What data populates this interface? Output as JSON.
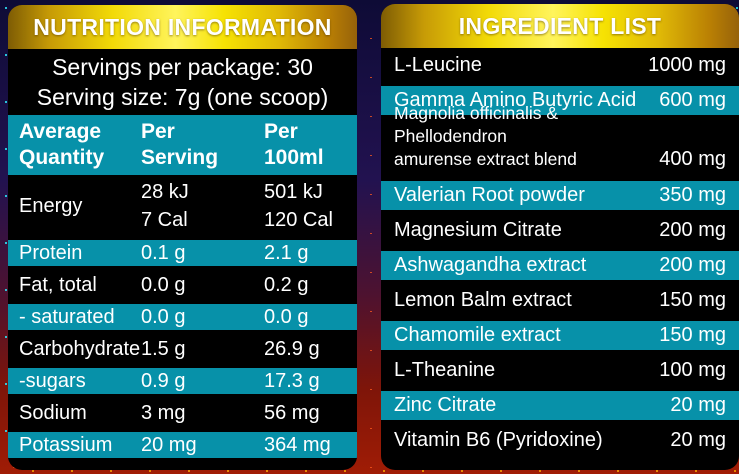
{
  "colors": {
    "accent_teal": "#0791a9",
    "gold_bright": "#fff200",
    "gold_dark": "#8a6203",
    "row_black": "#000000",
    "text_white": "#ffffff"
  },
  "nutrition": {
    "title": "NUTRITION INFORMATION",
    "servings_per_package": "Servings per package: 30",
    "serving_size": "Serving size: 7g (one scoop)",
    "columns": [
      "Average\nQuantity",
      "Per\nServing",
      "Per\n100ml"
    ],
    "rows": [
      {
        "label": "Energy",
        "per_serving": "28 kJ\n7 Cal",
        "per_100ml": "501 kJ\n120 Cal"
      },
      {
        "label": "Protein",
        "per_serving": "0.1 g",
        "per_100ml": "2.1 g"
      },
      {
        "label": "Fat, total",
        "per_serving": "0.0 g",
        "per_100ml": "0.2 g"
      },
      {
        "label": "- saturated",
        "per_serving": "0.0 g",
        "per_100ml": "0.0 g"
      },
      {
        "label": "Carbohydrate",
        "per_serving": "1.5 g",
        "per_100ml": "26.9 g"
      },
      {
        "label": "-sugars",
        "per_serving": "0.9 g",
        "per_100ml": "17.3 g"
      },
      {
        "label": "Sodium",
        "per_serving": "3 mg",
        "per_100ml": "56 mg"
      },
      {
        "label": "Potassium",
        "per_serving": "20 mg",
        "per_100ml": "364 mg"
      }
    ]
  },
  "ingredients": {
    "title": "INGREDIENT LIST",
    "rows": [
      {
        "name": "L-Leucine",
        "amount": "1000 mg"
      },
      {
        "name": "Gamma Amino Butyric Acid",
        "amount": "600 mg"
      },
      {
        "name": "Magnolia officinalis & Phellodendron\namurense extract blend",
        "amount": "400 mg"
      },
      {
        "name": "Valerian Root powder",
        "amount": "350 mg"
      },
      {
        "name": "Magnesium Citrate",
        "amount": "200 mg"
      },
      {
        "name": "Ashwagandha extract",
        "amount": "200 mg"
      },
      {
        "name": "Lemon Balm extract",
        "amount": "150 mg"
      },
      {
        "name": "Chamomile extract",
        "amount": "150 mg"
      },
      {
        "name": "L-Theanine",
        "amount": "100 mg"
      },
      {
        "name": "Zinc Citrate",
        "amount": "20 mg"
      },
      {
        "name": "Vitamin B6 (Pyridoxine)",
        "amount": "20 mg"
      }
    ]
  }
}
